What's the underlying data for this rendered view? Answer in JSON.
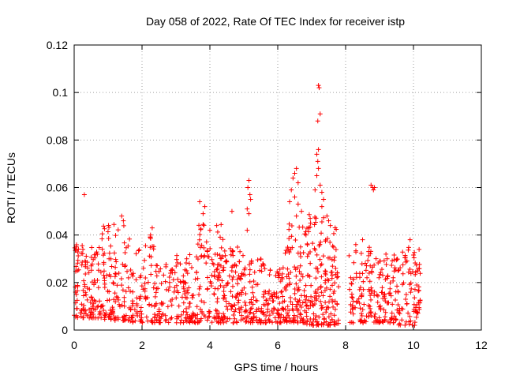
{
  "chart_data": {
    "type": "scatter",
    "title": "Day 058 of 2022, Rate Of TEC Index for receiver istp",
    "xlabel": "GPS time / hours",
    "ylabel": "ROTI / TECUs",
    "xlim": [
      0,
      12
    ],
    "ylim": [
      0,
      0.12
    ],
    "xticks": [
      0,
      2,
      4,
      6,
      8,
      10,
      12
    ],
    "xtick_labels": [
      "0",
      "2",
      "4",
      "6",
      "8",
      "10",
      "12"
    ],
    "yticks": [
      0,
      0.02,
      0.04,
      0.06,
      0.08,
      0.1,
      0.12
    ],
    "ytick_labels": [
      "0",
      "0.02",
      "0.04",
      "0.06",
      "0.08",
      "0.1",
      "0.12"
    ],
    "grid": true,
    "marker": "+",
    "color": "#ff0000",
    "series": [
      {
        "name": "ROTI",
        "clusters": [
          {
            "x": [
              0.0,
              0.8
            ],
            "y": [
              0.005,
              0.036
            ],
            "n": 120
          },
          {
            "x": [
              0.8,
              1.6
            ],
            "y": [
              0.004,
              0.045
            ],
            "n": 110
          },
          {
            "x": [
              1.6,
              2.4
            ],
            "y": [
              0.003,
              0.04
            ],
            "n": 90
          },
          {
            "x": [
              2.4,
              3.0
            ],
            "y": [
              0.003,
              0.028
            ],
            "n": 60
          },
          {
            "x": [
              3.0,
              3.6
            ],
            "y": [
              0.003,
              0.032
            ],
            "n": 80
          },
          {
            "x": [
              3.6,
              4.4
            ],
            "y": [
              0.003,
              0.045
            ],
            "n": 120
          },
          {
            "x": [
              4.4,
              5.0
            ],
            "y": [
              0.003,
              0.035
            ],
            "n": 90
          },
          {
            "x": [
              5.0,
              5.6
            ],
            "y": [
              0.003,
              0.03
            ],
            "n": 80
          },
          {
            "x": [
              5.6,
              6.2
            ],
            "y": [
              0.003,
              0.028
            ],
            "n": 80
          },
          {
            "x": [
              6.2,
              6.8
            ],
            "y": [
              0.003,
              0.045
            ],
            "n": 100
          },
          {
            "x": [
              6.8,
              7.4
            ],
            "y": [
              0.002,
              0.05
            ],
            "n": 110
          },
          {
            "x": [
              7.4,
              7.8
            ],
            "y": [
              0.002,
              0.045
            ],
            "n": 70
          },
          {
            "x": [
              8.1,
              8.8
            ],
            "y": [
              0.003,
              0.035
            ],
            "n": 90
          },
          {
            "x": [
              8.8,
              9.5
            ],
            "y": [
              0.003,
              0.032
            ],
            "n": 90
          },
          {
            "x": [
              9.5,
              10.2
            ],
            "y": [
              0.002,
              0.035
            ],
            "n": 90
          }
        ],
        "points": [
          [
            0.3,
            0.057
          ],
          [
            1.4,
            0.048
          ],
          [
            1.45,
            0.046
          ],
          [
            2.3,
            0.043
          ],
          [
            2.25,
            0.04
          ],
          [
            3.7,
            0.054
          ],
          [
            3.85,
            0.052
          ],
          [
            3.8,
            0.049
          ],
          [
            4.65,
            0.05
          ],
          [
            4.0,
            0.042
          ],
          [
            4.2,
            0.044
          ],
          [
            5.15,
            0.063
          ],
          [
            5.12,
            0.06
          ],
          [
            5.18,
            0.057
          ],
          [
            5.2,
            0.055
          ],
          [
            5.1,
            0.051
          ],
          [
            5.15,
            0.049
          ],
          [
            5.1,
            0.042
          ],
          [
            6.5,
            0.066
          ],
          [
            6.55,
            0.068
          ],
          [
            6.45,
            0.064
          ],
          [
            6.6,
            0.062
          ],
          [
            6.4,
            0.059
          ],
          [
            6.5,
            0.056
          ],
          [
            6.35,
            0.054
          ],
          [
            6.6,
            0.053
          ],
          [
            6.7,
            0.05
          ],
          [
            6.55,
            0.048
          ],
          [
            7.2,
            0.103
          ],
          [
            7.22,
            0.102
          ],
          [
            7.25,
            0.091
          ],
          [
            7.18,
            0.088
          ],
          [
            7.2,
            0.076
          ],
          [
            7.15,
            0.074
          ],
          [
            7.18,
            0.071
          ],
          [
            7.2,
            0.068
          ],
          [
            7.15,
            0.065
          ],
          [
            7.25,
            0.061
          ],
          [
            7.1,
            0.059
          ],
          [
            7.3,
            0.058
          ],
          [
            7.35,
            0.055
          ],
          [
            7.3,
            0.052
          ],
          [
            7.45,
            0.048
          ],
          [
            7.5,
            0.046
          ],
          [
            7.55,
            0.044
          ],
          [
            8.75,
            0.061
          ],
          [
            8.8,
            0.06
          ],
          [
            8.85,
            0.06
          ],
          [
            8.82,
            0.059
          ],
          [
            8.5,
            0.038
          ],
          [
            8.3,
            0.036
          ],
          [
            9.9,
            0.038
          ]
        ]
      }
    ]
  }
}
